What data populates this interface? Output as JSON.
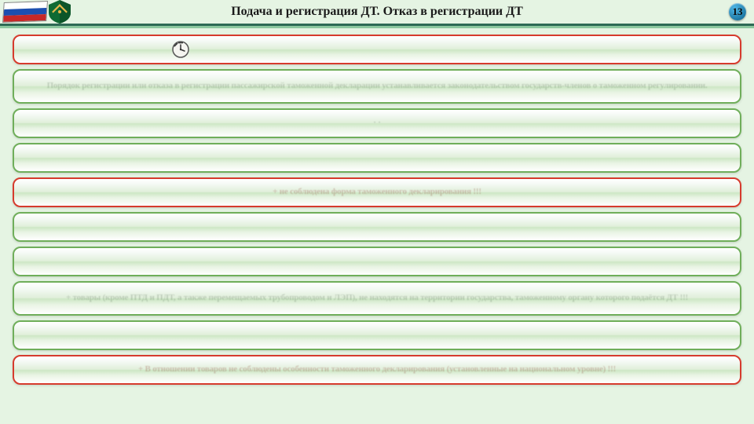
{
  "header": {
    "title": "Подача и регистрация ДТ. Отказ в регистрации ДТ",
    "page_number": "13",
    "flag_colors": {
      "top": "#ffffff",
      "mid": "#1c4fb0",
      "bot": "#c62828"
    },
    "emblem_color": "#0f6a33",
    "rule_dark": "#2e6a55",
    "rule_light": "#8bc79e"
  },
  "palette": {
    "page_bg": "#e5f4e3",
    "bar_border_green": "#6fae5a",
    "bar_border_red": "#d63b2d",
    "bar_grad_top": "#ffffff",
    "bar_grad_mid": "#e0efda",
    "bar_grad_bot": "#ffffff",
    "placeholder_text_green": "rgba(60,80,60,0.22)",
    "placeholder_text_red": "rgba(140,60,50,0.28)"
  },
  "bars": [
    {
      "id": "bar1",
      "border": "red",
      "has_clock": true,
      "tall": false,
      "text": ""
    },
    {
      "id": "bar2",
      "border": "green",
      "has_clock": false,
      "tall": true,
      "text": "Порядок регистрации или отказа в регистрации пассажирской таможенной декларации устанавливается законодательством государств-членов о таможенном регулировании."
    },
    {
      "id": "bar3",
      "border": "green",
      "has_clock": false,
      "tall": false,
      "text": "              ·          ·     "
    },
    {
      "id": "bar4",
      "border": "green",
      "has_clock": false,
      "tall": false,
      "text": ""
    },
    {
      "id": "bar5",
      "border": "red",
      "has_clock": false,
      "tall": false,
      "text": "+ не соблюдена форма таможенного декларирования !!!"
    },
    {
      "id": "bar6",
      "border": "green",
      "has_clock": false,
      "tall": false,
      "text": ""
    },
    {
      "id": "bar7",
      "border": "green",
      "has_clock": false,
      "tall": false,
      "text": ""
    },
    {
      "id": "bar8",
      "border": "green",
      "has_clock": false,
      "tall": true,
      "text": "+ товары (кроме ПТД и ПДТ, а также перемещаемых трубопроводом и ЛЭП), не находятся на территории государства, таможенному органу которого подаётся ДТ !!!"
    },
    {
      "id": "bar9",
      "border": "green",
      "has_clock": false,
      "tall": false,
      "text": ""
    },
    {
      "id": "bar10",
      "border": "red",
      "has_clock": false,
      "tall": false,
      "text": "+ В отношении товаров не соблюдены особенности таможенного декларирования (установленные на национальном уровне) !!!"
    }
  ]
}
